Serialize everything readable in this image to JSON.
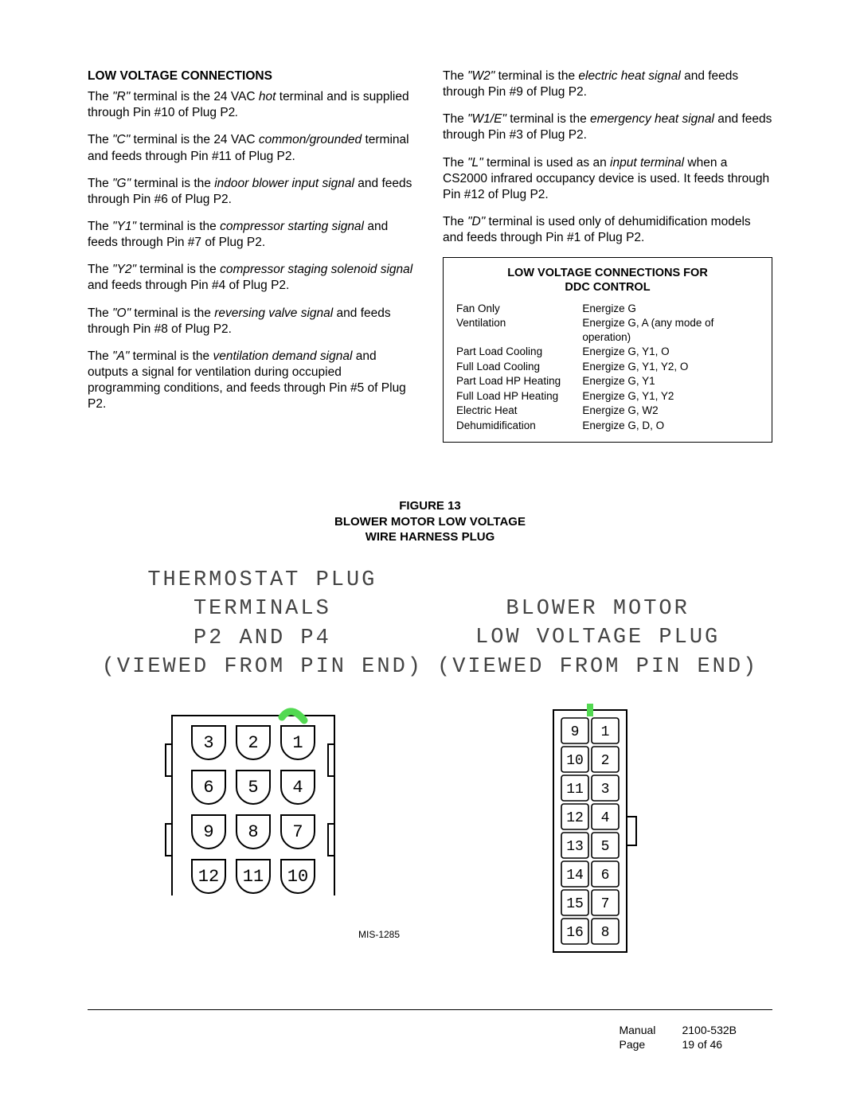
{
  "left": {
    "heading": "LOW VOLTAGE CONNECTIONS",
    "paras": [
      [
        [
          "",
          "The "
        ],
        [
          "i",
          "\"R\""
        ],
        [
          "",
          " terminal is the 24 VAC "
        ],
        [
          "i",
          "hot"
        ],
        [
          "",
          " terminal and is supplied through Pin #10 of Plug P2"
        ],
        [
          "i",
          "."
        ]
      ],
      [
        [
          "",
          "The "
        ],
        [
          "i",
          "\"C\""
        ],
        [
          "",
          " terminal is the 24 VAC "
        ],
        [
          "i",
          "common/grounded"
        ],
        [
          "",
          " terminal and feeds through Pin #11 of Plug P2."
        ]
      ],
      [
        [
          "",
          "The "
        ],
        [
          "i",
          "\"G\""
        ],
        [
          "",
          " terminal is the "
        ],
        [
          "i",
          "indoor blower input signal"
        ],
        [
          "",
          " and feeds through Pin #6 of Plug P2."
        ]
      ],
      [
        [
          "",
          "The "
        ],
        [
          "i",
          "\"Y1\""
        ],
        [
          "",
          " terminal is the "
        ],
        [
          "i",
          "compressor starting signal"
        ],
        [
          "",
          " and feeds through Pin #7 of Plug P2."
        ]
      ],
      [
        [
          "",
          "The "
        ],
        [
          "i",
          "\"Y2\""
        ],
        [
          "",
          " terminal is the "
        ],
        [
          "i",
          "compressor staging solenoid signal"
        ],
        [
          "",
          " and feeds through Pin #4 of Plug P2."
        ]
      ],
      [
        [
          "",
          "The "
        ],
        [
          "i",
          "\"O\""
        ],
        [
          "",
          " terminal is the "
        ],
        [
          "i",
          "reversing valve signal"
        ],
        [
          "",
          " and feeds through Pin #8 of Plug P2."
        ]
      ],
      [
        [
          "",
          "The "
        ],
        [
          "i",
          "\"A\""
        ],
        [
          "",
          " terminal is the "
        ],
        [
          "i",
          "ventilation demand signal"
        ],
        [
          "",
          " and outputs a signal for ventilation during occupied programming conditions, and feeds through Pin #5 of Plug P2."
        ]
      ]
    ]
  },
  "right": {
    "paras": [
      [
        [
          "",
          "The "
        ],
        [
          "i",
          "\"W2\""
        ],
        [
          "",
          " terminal is the "
        ],
        [
          "i",
          "electric heat signal"
        ],
        [
          "",
          " and feeds through Pin #9 of Plug P2."
        ]
      ],
      [
        [
          "",
          "The "
        ],
        [
          "i",
          "\"W1/E\""
        ],
        [
          "",
          " terminal is the "
        ],
        [
          "i",
          "emergency heat signal"
        ],
        [
          "",
          " and feeds through Pin #3 of Plug P2."
        ]
      ],
      [
        [
          "",
          "The "
        ],
        [
          "i",
          "\"L\""
        ],
        [
          "",
          " terminal is used as an "
        ],
        [
          "i",
          "input terminal"
        ],
        [
          "",
          " when a CS2000 infrared occupancy device is used.  It feeds through Pin #12 of Plug P2."
        ]
      ],
      [
        [
          "",
          "The "
        ],
        [
          "i",
          "\"D\""
        ],
        [
          "",
          " terminal is used only of dehumidification models and feeds through Pin #1 of Plug P2."
        ]
      ]
    ]
  },
  "ddc": {
    "title_l1": "LOW VOLTAGE CONNECTIONS FOR",
    "title_l2": "DDC CONTROL",
    "rows": [
      [
        "Fan Only",
        "Energize G"
      ],
      [
        "Ventilation",
        "Energize G, A (any mode of operation)"
      ],
      [
        "Part Load Cooling",
        "Energize G, Y1, O"
      ],
      [
        "Full Load Cooling",
        "Energize G, Y1, Y2, O"
      ],
      [
        "Part Load HP Heating",
        "Energize G, Y1"
      ],
      [
        "Full Load HP Heating",
        "Energize G, Y1, Y2"
      ],
      [
        "Electric Heat",
        "Energize G, W2"
      ],
      [
        "Dehumidification",
        "Energize G, D, O"
      ]
    ]
  },
  "figure": {
    "l1": "FIGURE  13",
    "l2": "BLOWER MOTOR LOW VOLTAGE",
    "l3": "WIRE HARNESS PLUG"
  },
  "diag_left": {
    "l1": "THERMOSTAT PLUG",
    "l2": "TERMINALS",
    "l3": "P2 AND P4",
    "l4": "(VIEWED FROM PIN END)",
    "pins": [
      "3",
      "2",
      "1",
      "6",
      "5",
      "4",
      "9",
      "8",
      "7",
      "12",
      "11",
      "10"
    ],
    "highlight_color": "#52d951"
  },
  "diag_right": {
    "l1": "BLOWER MOTOR",
    "l2": "LOW VOLTAGE PLUG",
    "l3": "(VIEWED FROM PIN END)",
    "pins_left": [
      "9",
      "10",
      "11",
      "12",
      "13",
      "14",
      "15",
      "16"
    ],
    "pins_right": [
      "1",
      "2",
      "3",
      "4",
      "5",
      "6",
      "7",
      "8"
    ],
    "highlight_color": "#52d951"
  },
  "mis": "MIS-1285",
  "footer": {
    "manual_label": "Manual",
    "manual_val": "2100-532B",
    "page_label": "Page",
    "page_val": "19 of 46"
  }
}
